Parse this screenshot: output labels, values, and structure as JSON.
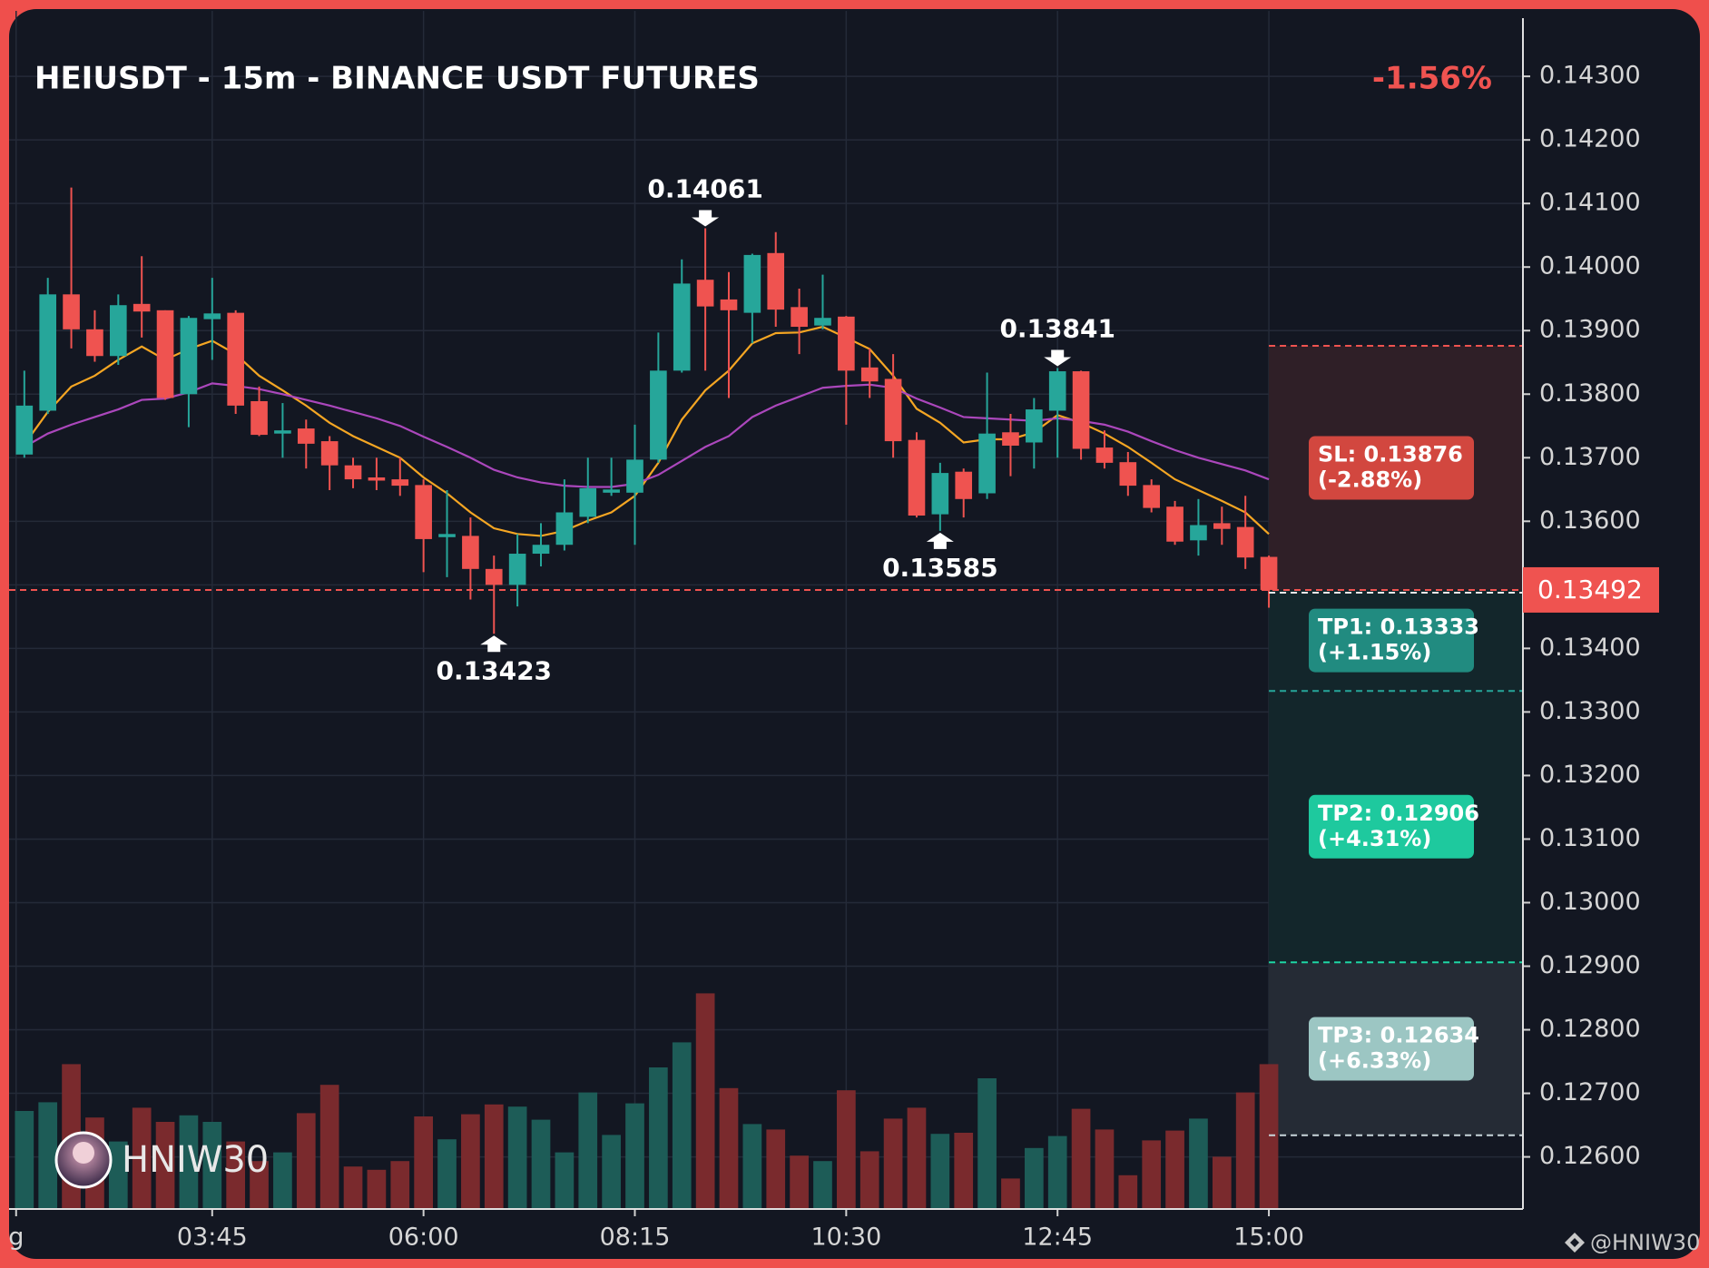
{
  "chart_data": {
    "type": "candlestick",
    "title": "HEIUSDT - 15m - BINANCE USDT FUTURES",
    "change_label": "-1.56%",
    "watermark": "HNIW30",
    "credit": "@HNIW30",
    "xlim": [
      -0.65,
      63.82
    ],
    "xticks": [
      {
        "value": -0.35,
        "label": "g"
      },
      {
        "value": 8,
        "label": "03:45"
      },
      {
        "value": 17,
        "label": "06:00"
      },
      {
        "value": 26,
        "label": "08:15"
      },
      {
        "value": 35,
        "label": "10:30"
      },
      {
        "value": 44,
        "label": "12:45"
      },
      {
        "value": 53,
        "label": "15:00"
      }
    ],
    "ylim": [
      0.12518,
      0.14403
    ],
    "yticks": [
      {
        "value": 0.126,
        "label": "0.12600"
      },
      {
        "value": 0.127,
        "label": "0.12700"
      },
      {
        "value": 0.128,
        "label": "0.12800"
      },
      {
        "value": 0.129,
        "label": "0.12900"
      },
      {
        "value": 0.13,
        "label": "0.13000"
      },
      {
        "value": 0.131,
        "label": "0.13100"
      },
      {
        "value": 0.132,
        "label": "0.13200"
      },
      {
        "value": 0.133,
        "label": "0.13300"
      },
      {
        "value": 0.134,
        "label": "0.13400"
      },
      {
        "value": 0.135,
        "label": "0.13500"
      },
      {
        "value": 0.136,
        "label": "0.13600"
      },
      {
        "value": 0.137,
        "label": "0.13700"
      },
      {
        "value": 0.138,
        "label": "0.13800"
      },
      {
        "value": 0.139,
        "label": "0.13900"
      },
      {
        "value": 0.14,
        "label": "0.14000"
      },
      {
        "value": 0.141,
        "label": "0.14100"
      },
      {
        "value": 0.142,
        "label": "0.14200"
      },
      {
        "value": 0.143,
        "label": "0.14300"
      }
    ],
    "grid": true,
    "series": [
      {
        "type": "candlestick",
        "up_color": "#26a69a",
        "down_color": "#ef5350",
        "volume_up_color": "#1d5c57",
        "volume_down_color": "#7a2a2d",
        "open": [
          0.13705,
          0.13774,
          0.13957,
          0.13902,
          0.1386,
          0.13942,
          0.13932,
          0.138,
          0.13918,
          0.13928,
          0.13789,
          0.13738,
          0.13746,
          0.13726,
          0.13688,
          0.13669,
          0.13666,
          0.13657,
          0.13575,
          0.13577,
          0.13525,
          0.135,
          0.13549,
          0.13563,
          0.13607,
          0.13645,
          0.13645,
          0.13697,
          0.13837,
          0.1398,
          0.13949,
          0.13928,
          0.14022,
          0.13937,
          0.13908,
          0.13922,
          0.13842,
          0.13824,
          0.13728,
          0.13611,
          0.13678,
          0.13644,
          0.1374,
          0.13724,
          0.13774,
          0.13836,
          0.13716,
          0.13693,
          0.13657,
          0.13623,
          0.1357,
          0.13597,
          0.13591,
          0.13544
        ],
        "high": [
          0.13837,
          0.13983,
          0.14125,
          0.13932,
          0.13957,
          0.14017,
          0.13932,
          0.13923,
          0.13983,
          0.13932,
          0.13812,
          0.13786,
          0.1376,
          0.13734,
          0.137,
          0.137,
          0.137,
          0.13666,
          0.13649,
          0.13606,
          0.13546,
          0.1358,
          0.13597,
          0.13666,
          0.137,
          0.137,
          0.13752,
          0.13897,
          0.14012,
          0.14061,
          0.13992,
          0.14021,
          0.14055,
          0.13966,
          0.13988,
          0.13923,
          0.13872,
          0.13863,
          0.1374,
          0.13692,
          0.13683,
          0.13834,
          0.13769,
          0.13794,
          0.13841,
          0.13837,
          0.13743,
          0.13709,
          0.13666,
          0.13632,
          0.13635,
          0.13623,
          0.1364,
          0.13546
        ],
        "low": [
          0.137,
          0.13769,
          0.13872,
          0.13851,
          0.13846,
          0.13889,
          0.13791,
          0.13748,
          0.13854,
          0.13769,
          0.13734,
          0.137,
          0.13683,
          0.13649,
          0.13652,
          0.13649,
          0.1364,
          0.1352,
          0.13512,
          0.13477,
          0.13423,
          0.13466,
          0.13529,
          0.13554,
          0.13597,
          0.1364,
          0.13563,
          0.13692,
          0.13834,
          0.13837,
          0.13794,
          0.1388,
          0.13906,
          0.13863,
          0.13902,
          0.13752,
          0.13794,
          0.137,
          0.13606,
          0.13585,
          0.13606,
          0.13635,
          0.13671,
          0.13683,
          0.137,
          0.13697,
          0.13683,
          0.1364,
          0.13614,
          0.13563,
          0.13546,
          0.13563,
          0.13525,
          0.13464
        ],
        "close": [
          0.13782,
          0.13957,
          0.13902,
          0.1386,
          0.1394,
          0.1393,
          0.13794,
          0.1392,
          0.13927,
          0.13782,
          0.13736,
          0.13743,
          0.13722,
          0.13688,
          0.13666,
          0.13664,
          0.13656,
          0.13572,
          0.1358,
          0.13525,
          0.135,
          0.13549,
          0.13563,
          0.13614,
          0.13652,
          0.1365,
          0.13697,
          0.13837,
          0.13974,
          0.13938,
          0.13932,
          0.14019,
          0.13933,
          0.13906,
          0.1392,
          0.13837,
          0.1382,
          0.13726,
          0.13609,
          0.13676,
          0.13635,
          0.13738,
          0.13719,
          0.13776,
          0.13836,
          0.13714,
          0.13692,
          0.13656,
          0.13621,
          0.13568,
          0.13594,
          0.13588,
          0.13543,
          0.13492
        ],
        "volume": [
          90,
          98,
          133,
          84,
          62,
          93,
          80,
          86,
          80,
          62,
          44,
          52,
          88,
          114,
          39,
          36,
          44,
          85,
          64,
          87,
          96,
          94,
          82,
          52,
          107,
          68,
          97,
          130,
          153,
          198,
          111,
          78,
          73,
          49,
          44,
          109,
          53,
          83,
          93,
          69,
          70,
          120,
          28,
          56,
          67,
          92,
          73,
          31,
          63,
          72,
          83,
          48,
          107,
          133
        ]
      },
      {
        "type": "line",
        "color": "#f5a623",
        "values": [
          0.13721,
          0.13772,
          0.13812,
          0.13829,
          0.13854,
          0.13875,
          0.13854,
          0.13871,
          0.13884,
          0.13863,
          0.13829,
          0.13806,
          0.13782,
          0.13755,
          0.13734,
          0.13717,
          0.137,
          0.13669,
          0.13644,
          0.13614,
          0.13589,
          0.1358,
          0.13577,
          0.13585,
          0.13601,
          0.13614,
          0.1364,
          0.13692,
          0.1376,
          0.13806,
          0.13837,
          0.1388,
          0.13896,
          0.13897,
          0.13906,
          0.13889,
          0.13871,
          0.13829,
          0.13777,
          0.13755,
          0.13724,
          0.13729,
          0.13729,
          0.1374,
          0.13767,
          0.13755,
          0.13738,
          0.13717,
          0.13692,
          0.13666,
          0.13649,
          0.13632,
          0.13614,
          0.1358
        ]
      },
      {
        "type": "line",
        "color": "#ab47bc",
        "values": [
          0.13717,
          0.13738,
          0.13752,
          0.13764,
          0.13776,
          0.13791,
          0.13793,
          0.13803,
          0.13817,
          0.13813,
          0.13808,
          0.138,
          0.13791,
          0.13782,
          0.13772,
          0.13762,
          0.1375,
          0.13733,
          0.13717,
          0.137,
          0.13681,
          0.13669,
          0.13661,
          0.13656,
          0.13654,
          0.13654,
          0.13659,
          0.13673,
          0.13695,
          0.13717,
          0.13734,
          0.13764,
          0.13782,
          0.13796,
          0.1381,
          0.13813,
          0.13815,
          0.1381,
          0.13793,
          0.13779,
          0.13764,
          0.13762,
          0.1376,
          0.13758,
          0.13762,
          0.13758,
          0.13752,
          0.13741,
          0.13726,
          0.13712,
          0.137,
          0.1369,
          0.1368,
          0.13666
        ]
      }
    ],
    "annotations": [
      {
        "x": 29,
        "value": 0.14061,
        "position": "above"
      },
      {
        "x": 20,
        "value": 0.13423,
        "position": "below"
      },
      {
        "x": 39,
        "value": 0.13585,
        "position": "below"
      },
      {
        "x": 44,
        "value": 0.13841,
        "position": "above"
      }
    ],
    "levels": [
      {
        "label": "SL: 0.13876",
        "change": "(-2.88%)",
        "value": 0.13876,
        "color": "#d2473f",
        "line_color": "#ef5350",
        "zone_color": "#2f1f27"
      },
      {
        "label": "TP1: 0.13333",
        "change": "(+1.15%)",
        "value": 0.13333,
        "color": "#218b80",
        "line_color": "#26a69a",
        "zone_color": "#13262b"
      },
      {
        "label": "TP2: 0.12906",
        "change": "(+4.31%)",
        "value": 0.12906,
        "color": "#1ec99e",
        "line_color": "#1ed6a4",
        "zone_color": "#13262b"
      },
      {
        "label": "TP3: 0.12634",
        "change": "(+6.33%)",
        "value": 0.12634,
        "color": "#9cc6c3",
        "line_color": "#c9d6db",
        "zone_color": "#252b35"
      }
    ]
  }
}
